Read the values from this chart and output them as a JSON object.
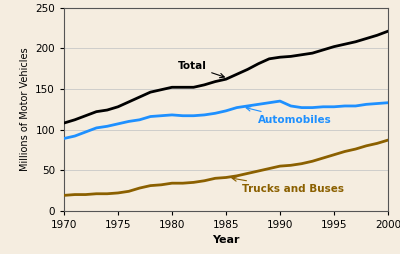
{
  "years": [
    1970,
    1971,
    1972,
    1973,
    1974,
    1975,
    1976,
    1977,
    1978,
    1979,
    1980,
    1981,
    1982,
    1983,
    1984,
    1985,
    1986,
    1987,
    1988,
    1989,
    1990,
    1991,
    1992,
    1993,
    1994,
    1995,
    1996,
    1997,
    1998,
    1999,
    2000
  ],
  "total": [
    108,
    112,
    117,
    122,
    124,
    128,
    134,
    140,
    146,
    149,
    152,
    152,
    152,
    155,
    159,
    162,
    168,
    174,
    181,
    187,
    189,
    190,
    192,
    194,
    198,
    202,
    205,
    208,
    212,
    216,
    221
  ],
  "autos": [
    89,
    92,
    97,
    102,
    104,
    107,
    110,
    112,
    116,
    117,
    118,
    117,
    117,
    118,
    120,
    123,
    127,
    129,
    131,
    133,
    135,
    129,
    127,
    127,
    128,
    128,
    129,
    129,
    131,
    132,
    133
  ],
  "trucks": [
    19,
    20,
    20,
    21,
    21,
    22,
    24,
    28,
    31,
    32,
    34,
    34,
    35,
    37,
    40,
    41,
    43,
    46,
    49,
    52,
    55,
    56,
    58,
    61,
    65,
    69,
    73,
    76,
    80,
    83,
    87
  ],
  "total_color": "#000000",
  "autos_color": "#1E90FF",
  "trucks_color": "#8B6000",
  "background_color": "#f5ede0",
  "grid_color": "#c8c8c8",
  "ylabel": "Millions of Motor Vehicles",
  "xlabel": "Year",
  "ylim": [
    0,
    250
  ],
  "xlim": [
    1970,
    2000
  ],
  "yticks": [
    0,
    50,
    100,
    150,
    200,
    250
  ],
  "xticks": [
    1970,
    1975,
    1980,
    1985,
    1990,
    1995,
    2000
  ],
  "label_total": "Total",
  "label_autos": "Automobiles",
  "label_trucks": "Trucks and Buses"
}
